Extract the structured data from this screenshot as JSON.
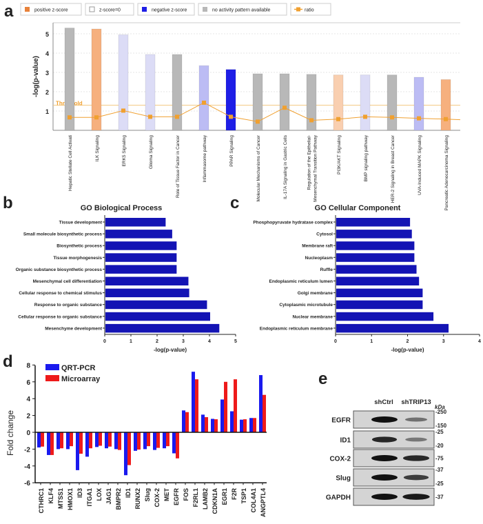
{
  "panels": {
    "a": "a",
    "b": "b",
    "c": "c",
    "d": "d",
    "e": "e"
  },
  "colors": {
    "gray": "#b8b8b8",
    "positive": "#f6b07e",
    "positive_light": "#f9cfb0",
    "zero": "#dcdcf6",
    "neg_light": "#bcbcf4",
    "negative": "#1e1ee6",
    "ratio": "#f0a030",
    "go_bar": "#1414b4",
    "qrt": "#1a1aee",
    "micro": "#ee1a1a"
  },
  "chart_data": [
    {
      "panel": "a",
      "type": "bar",
      "ylabel": "-log(p-value)",
      "ylim": [
        0,
        5.5
      ],
      "yticks": [
        1,
        2,
        3,
        4,
        5
      ],
      "grid": true,
      "threshold": {
        "label": "Threshold",
        "value": 1.3
      },
      "legend": {
        "placement": "top",
        "items": [
          {
            "label": "positive z-score",
            "color": "#e8823a"
          },
          {
            "label": "z-score=0",
            "color": "#ffffff"
          },
          {
            "label": "negative z-score",
            "color": "#1e1ee6"
          },
          {
            "label": "no activity pattern available",
            "color": "#b8b8b8"
          },
          {
            "label": "ratio",
            "color": "#f0a030"
          }
        ]
      },
      "categories": [
        "Hepatic Stellate Cell Activati",
        "ILK Signaling",
        "ERK5 Signaling",
        "Glioma Signaling",
        "Role of Tissue Factor in Cancer",
        "Inflammasome pathway",
        "PPAR Signaling",
        "Molecular Mechanisms of Cancer",
        "IL-17A Signaling in Gastric Cells",
        "Regulation of the Epithelial-|Mesenchymal Transition Pathway",
        "PI3K/AKT Signaling",
        "BMP signaling pathway",
        "HER-2 Signaling in Breast Cancer",
        "UVA-Induced MAPK Signaling",
        "Pancreatic Adenocarcinoma Signaling"
      ],
      "values": [
        5.3,
        5.25,
        4.95,
        3.93,
        3.93,
        3.35,
        3.15,
        2.93,
        2.93,
        2.9,
        2.87,
        2.87,
        2.87,
        2.75,
        2.63
      ],
      "bar_colors": [
        "gray",
        "positive",
        "zero",
        "zero",
        "gray",
        "neg_light",
        "negative",
        "gray",
        "gray",
        "gray",
        "positive_light",
        "zero",
        "gray",
        "neg_light",
        "positive"
      ],
      "ratio": [
        0.67,
        0.67,
        1.02,
        0.7,
        0.7,
        1.43,
        0.7,
        0.45,
        1.17,
        0.52,
        0.58,
        0.7,
        0.67,
        0.62,
        0.58
      ]
    },
    {
      "panel": "b",
      "type": "bar",
      "orientation": "horizontal",
      "title": "GO Biological Process",
      "xlabel": "-log(p-value)",
      "xlim": [
        0,
        5
      ],
      "xticks": [
        0,
        1,
        2,
        3,
        4,
        5
      ],
      "categories": [
        "Tissue development",
        "Small molecule biosynthetic process",
        "Biosynthetic process",
        "Tissue morphogenesis",
        "Organic substance biosynthetic process",
        "Mesenchymal cell differentiation",
        "Cellular response to chemical stimulus",
        "Response to organic substance",
        "Cellular response to organic substance",
        "Mesenchyme development"
      ],
      "values": [
        2.3,
        2.55,
        2.72,
        2.72,
        2.72,
        3.17,
        3.2,
        3.88,
        4.0,
        4.35
      ]
    },
    {
      "panel": "c",
      "type": "bar",
      "orientation": "horizontal",
      "title": "GO Cellular Component",
      "xlabel": "-log(p-value)",
      "xlim": [
        0,
        4
      ],
      "xticks": [
        0,
        1,
        2,
        3,
        4
      ],
      "categories": [
        "Phosphopyruvate hydratase complex",
        "Cytosol",
        "Membrane raft",
        "Nucleoplasm",
        "Ruffle",
        "Endoplasmic reticulum lumen",
        "Golgi membrane",
        "Cytoplasmic microtubule",
        "Nuclear membrane",
        "Endoplasmic reticulum membrane"
      ],
      "values": [
        2.05,
        2.1,
        2.17,
        2.17,
        2.23,
        2.3,
        2.4,
        2.4,
        2.7,
        3.12
      ]
    },
    {
      "panel": "d",
      "type": "bar",
      "ylabel": "Fold  change",
      "ylim": [
        -6,
        8
      ],
      "yticks": [
        -6,
        -4,
        -2,
        0,
        2,
        4,
        6,
        8
      ],
      "legend": {
        "placement": "top-left"
      },
      "categories": [
        "CTHRC1",
        "KLF4",
        "MTSS1",
        "HMOX1",
        "ID3",
        "ITGA1",
        "LOX",
        "JAG1",
        "BMPR2",
        "ID1",
        "RUNX2",
        "Slug",
        "COX-2",
        "MET",
        "EGFR",
        "FOS",
        "F2RL1",
        "LAMB2",
        "CDKN1A",
        "EGR1",
        "F2R",
        "TSP1",
        "COL4A1",
        "ANGPTL4"
      ],
      "series": [
        {
          "name": "QRT-PCR",
          "values": [
            -1.8,
            -2.7,
            -2.0,
            -2.0,
            -4.5,
            -2.9,
            -1.75,
            -1.9,
            -2.0,
            -5.1,
            -2.2,
            -2.0,
            -2.1,
            -1.9,
            -2.5,
            2.6,
            7.2,
            2.1,
            1.6,
            3.9,
            2.5,
            1.5,
            1.7,
            6.8
          ]
        },
        {
          "name": "Microarray",
          "values": [
            -1.7,
            -2.7,
            -1.9,
            -1.65,
            -2.55,
            -1.9,
            -1.6,
            -1.7,
            -2.1,
            -3.9,
            -2.05,
            -1.65,
            -1.85,
            -1.65,
            -3.1,
            2.4,
            6.3,
            1.8,
            1.55,
            6.0,
            6.3,
            1.55,
            1.7,
            4.45
          ]
        }
      ]
    }
  ],
  "western_blot": {
    "lanes": [
      "shCtrl",
      "shTRIP13"
    ],
    "unit": "kDa",
    "rows": [
      {
        "label": "EGFR",
        "markers": [
          "-250",
          "-150"
        ],
        "intensity": [
          1.0,
          0.35
        ]
      },
      {
        "label": "ID1",
        "markers": [
          "-25",
          "-20"
        ],
        "intensity": [
          0.85,
          0.3
        ]
      },
      {
        "label": "COX-2",
        "markers": [
          "-75"
        ],
        "intensity": [
          1.0,
          0.85
        ]
      },
      {
        "label": "Slug",
        "markers": [
          "-37",
          "-25"
        ],
        "intensity": [
          1.0,
          0.7
        ]
      },
      {
        "label": "GAPDH",
        "markers": [
          "-37"
        ],
        "intensity": [
          1.0,
          0.95
        ]
      }
    ]
  }
}
